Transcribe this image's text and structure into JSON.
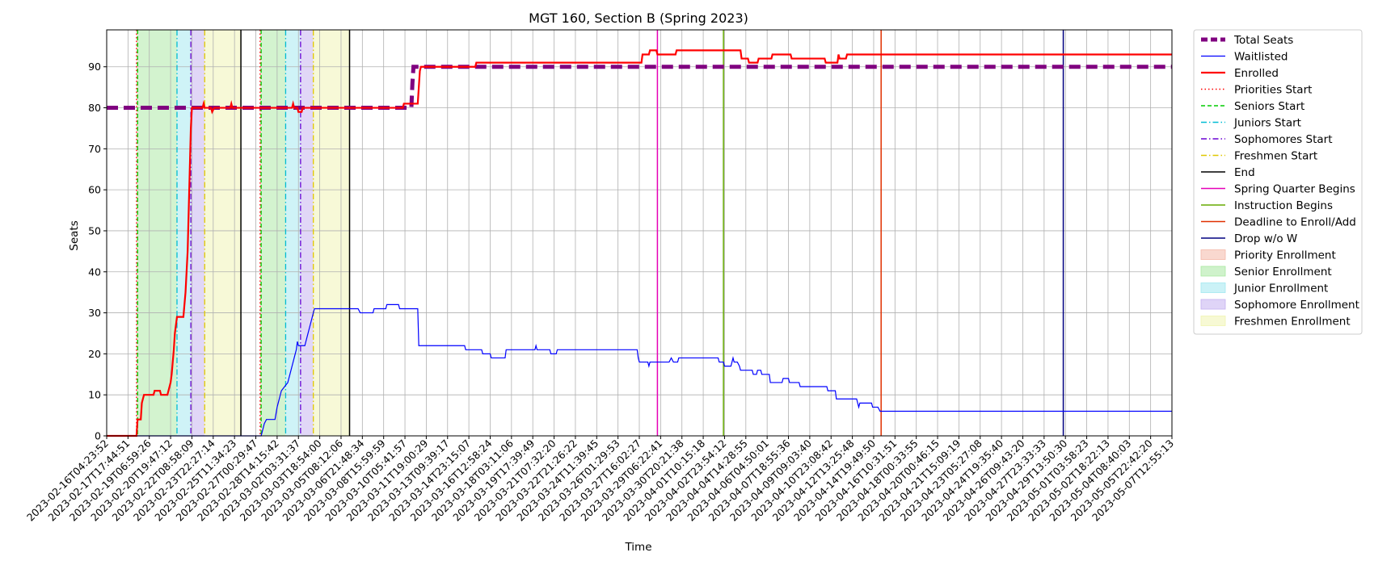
{
  "chart_data": {
    "type": "line",
    "title": "MGT 160, Section B (Spring 2023)",
    "xlabel": "Time",
    "ylabel": "Seats",
    "ylim": [
      0,
      99
    ],
    "grid": true,
    "legend_position": "outside-right",
    "x_tick_labels": [
      "2023-02-16T04:23:52",
      "2023-02-17T17:44:51",
      "2023-02-19T06:59:26",
      "2023-02-20T19:47:12",
      "2023-02-22T08:58:09",
      "2023-02-23T22:27:14",
      "2023-02-25T11:34:23",
      "2023-02-27T00:29:47",
      "2023-02-28T14:15:42",
      "2023-03-02T03:31:37",
      "2023-03-03T18:54:00",
      "2023-03-05T08:12:06",
      "2023-03-06T21:48:34",
      "2023-03-08T15:59:59",
      "2023-03-10T05:41:57",
      "2023-03-11T19:00:29",
      "2023-03-13T09:39:17",
      "2023-03-14T23:15:07",
      "2023-03-16T12:58:24",
      "2023-03-18T03:11:06",
      "2023-03-19T17:39:49",
      "2023-03-21T07:32:20",
      "2023-03-22T21:26:22",
      "2023-03-24T11:39:45",
      "2023-03-26T01:29:53",
      "2023-03-27T16:02:27",
      "2023-03-29T06:22:41",
      "2023-03-30T20:21:38",
      "2023-04-01T10:15:18",
      "2023-04-02T23:54:12",
      "2023-04-04T14:28:55",
      "2023-04-06T04:50:01",
      "2023-04-07T18:55:36",
      "2023-04-09T09:03:40",
      "2023-04-10T23:08:42",
      "2023-04-12T13:25:48",
      "2023-04-14T19:49:50",
      "2023-04-16T10:31:51",
      "2023-04-18T00:33:55",
      "2023-04-20T00:46:15",
      "2023-04-21T15:09:19",
      "2023-04-23T05:27:08",
      "2023-04-24T19:35:40",
      "2023-04-26T09:43:20",
      "2023-04-27T23:33:33",
      "2023-04-29T13:50:30",
      "2023-05-01T03:58:23",
      "2023-05-02T18:22:13",
      "2023-05-04T08:40:03",
      "2023-05-05T22:42:20",
      "2023-05-07T12:55:13"
    ],
    "y_ticks": [
      0,
      10,
      20,
      30,
      40,
      50,
      60,
      70,
      80,
      90
    ],
    "x_range_tick_index": [
      0,
      50
    ],
    "series": [
      {
        "name": "Total Seats",
        "color": "#800080",
        "style": "dashed-thick",
        "points": [
          [
            0,
            80
          ],
          [
            14.3,
            80
          ],
          [
            14.35,
            86
          ],
          [
            14.4,
            90
          ],
          [
            50,
            90
          ]
        ]
      },
      {
        "name": "Waitlisted",
        "color": "#0000ff",
        "style": "solid-thin",
        "points": [
          [
            0,
            0
          ],
          [
            7.25,
            0
          ],
          [
            7.3,
            1
          ],
          [
            7.4,
            3
          ],
          [
            7.5,
            4
          ],
          [
            7.9,
            4
          ],
          [
            8.0,
            7
          ],
          [
            8.1,
            9
          ],
          [
            8.2,
            11
          ],
          [
            8.35,
            12
          ],
          [
            8.5,
            13
          ],
          [
            8.6,
            15
          ],
          [
            8.7,
            17
          ],
          [
            8.8,
            19
          ],
          [
            8.9,
            21
          ],
          [
            8.95,
            23
          ],
          [
            9.0,
            22
          ],
          [
            9.3,
            22
          ],
          [
            9.4,
            24
          ],
          [
            9.5,
            26
          ],
          [
            9.6,
            28
          ],
          [
            9.7,
            30
          ],
          [
            9.75,
            31
          ],
          [
            11.8,
            31
          ],
          [
            11.9,
            30
          ],
          [
            12.5,
            30
          ],
          [
            12.55,
            31
          ],
          [
            13.1,
            31
          ],
          [
            13.15,
            32
          ],
          [
            13.7,
            32
          ],
          [
            13.75,
            31
          ],
          [
            14.6,
            31
          ],
          [
            14.65,
            22
          ],
          [
            16.8,
            22
          ],
          [
            16.85,
            21
          ],
          [
            17.6,
            21
          ],
          [
            17.65,
            20
          ],
          [
            18.0,
            20
          ],
          [
            18.05,
            19
          ],
          [
            18.7,
            19
          ],
          [
            18.75,
            21
          ],
          [
            20.1,
            21
          ],
          [
            20.15,
            22
          ],
          [
            20.2,
            21
          ],
          [
            20.8,
            21
          ],
          [
            20.85,
            20
          ],
          [
            21.1,
            20
          ],
          [
            21.15,
            21
          ],
          [
            24.9,
            21
          ],
          [
            24.95,
            19
          ],
          [
            25.0,
            18
          ],
          [
            25.4,
            18
          ],
          [
            25.45,
            17
          ],
          [
            25.5,
            18
          ],
          [
            26.4,
            18
          ],
          [
            26.5,
            19
          ],
          [
            26.6,
            18
          ],
          [
            26.8,
            18
          ],
          [
            26.85,
            19
          ],
          [
            28.7,
            19
          ],
          [
            28.75,
            18
          ],
          [
            28.95,
            18
          ],
          [
            29.0,
            17
          ],
          [
            29.3,
            17
          ],
          [
            29.35,
            18
          ],
          [
            29.4,
            19
          ],
          [
            29.45,
            18
          ],
          [
            29.6,
            18
          ],
          [
            29.7,
            17
          ],
          [
            29.75,
            16
          ],
          [
            30.3,
            16
          ],
          [
            30.35,
            15
          ],
          [
            30.5,
            15
          ],
          [
            30.55,
            16
          ],
          [
            30.7,
            16
          ],
          [
            30.75,
            15
          ],
          [
            31.1,
            15
          ],
          [
            31.15,
            13
          ],
          [
            31.7,
            13
          ],
          [
            31.75,
            14
          ],
          [
            32.0,
            14
          ],
          [
            32.05,
            13
          ],
          [
            32.5,
            13
          ],
          [
            32.55,
            12
          ],
          [
            33.8,
            12
          ],
          [
            33.85,
            11
          ],
          [
            34.2,
            11
          ],
          [
            34.25,
            9
          ],
          [
            35.2,
            9
          ],
          [
            35.25,
            8
          ],
          [
            35.3,
            7
          ],
          [
            35.35,
            8
          ],
          [
            35.9,
            8
          ],
          [
            35.95,
            7
          ],
          [
            36.2,
            7
          ],
          [
            36.3,
            6
          ],
          [
            50,
            6
          ]
        ]
      },
      {
        "name": "Enrolled",
        "color": "#ff0000",
        "style": "solid-thick",
        "points": [
          [
            0,
            0
          ],
          [
            1.4,
            0
          ],
          [
            1.45,
            4
          ],
          [
            1.6,
            4
          ],
          [
            1.65,
            8
          ],
          [
            1.75,
            10
          ],
          [
            2.2,
            10
          ],
          [
            2.25,
            11
          ],
          [
            2.5,
            11
          ],
          [
            2.55,
            10
          ],
          [
            2.85,
            10
          ],
          [
            2.9,
            11
          ],
          [
            3.0,
            13
          ],
          [
            3.05,
            15
          ],
          [
            3.15,
            21
          ],
          [
            3.2,
            25
          ],
          [
            3.25,
            27
          ],
          [
            3.3,
            29
          ],
          [
            3.6,
            29
          ],
          [
            3.7,
            35
          ],
          [
            3.8,
            45
          ],
          [
            3.85,
            55
          ],
          [
            3.9,
            65
          ],
          [
            3.95,
            75
          ],
          [
            4.0,
            80
          ],
          [
            4.5,
            80
          ],
          [
            4.55,
            81
          ],
          [
            4.6,
            80
          ],
          [
            4.9,
            80
          ],
          [
            4.95,
            79
          ],
          [
            5.05,
            80
          ],
          [
            5.8,
            80
          ],
          [
            5.85,
            81
          ],
          [
            5.9,
            80
          ],
          [
            8.7,
            80
          ],
          [
            8.75,
            81
          ],
          [
            8.8,
            80
          ],
          [
            8.95,
            80
          ],
          [
            9.0,
            79
          ],
          [
            9.15,
            79
          ],
          [
            9.2,
            80
          ],
          [
            13.9,
            80
          ],
          [
            13.95,
            81
          ],
          [
            14.6,
            81
          ],
          [
            14.7,
            89
          ],
          [
            14.75,
            90
          ],
          [
            17.3,
            90
          ],
          [
            17.35,
            91
          ],
          [
            25.1,
            91
          ],
          [
            25.15,
            93
          ],
          [
            25.45,
            93
          ],
          [
            25.5,
            94
          ],
          [
            25.8,
            94
          ],
          [
            25.85,
            93
          ],
          [
            26.7,
            93
          ],
          [
            26.75,
            94
          ],
          [
            29.75,
            94
          ],
          [
            29.8,
            92
          ],
          [
            30.1,
            92
          ],
          [
            30.15,
            91
          ],
          [
            30.55,
            91
          ],
          [
            30.6,
            92
          ],
          [
            31.2,
            92
          ],
          [
            31.25,
            93
          ],
          [
            32.1,
            93
          ],
          [
            32.15,
            92
          ],
          [
            33.7,
            92
          ],
          [
            33.75,
            91
          ],
          [
            34.3,
            91
          ],
          [
            34.35,
            93
          ],
          [
            34.4,
            92
          ],
          [
            34.7,
            92
          ],
          [
            34.75,
            93
          ],
          [
            50,
            93
          ]
        ]
      }
    ],
    "phase_lines": [
      {
        "name": "Priorities Start",
        "color": "#ff0000",
        "style": "dotted",
        "x": [
          1.4,
          7.2
        ]
      },
      {
        "name": "Seniors Start",
        "color": "#00cc00",
        "style": "dashed",
        "x": [
          1.45,
          7.25
        ]
      },
      {
        "name": "Juniors Start",
        "color": "#00bcd4",
        "style": "dashdot",
        "x": [
          3.3,
          8.4
        ]
      },
      {
        "name": "Sophomores Start",
        "color": "#6a00d4",
        "style": "dashdot",
        "x": [
          3.95,
          9.1
        ]
      },
      {
        "name": "Freshmen Start",
        "color": "#e0c800",
        "style": "dashdot",
        "x": [
          4.6,
          9.7
        ]
      },
      {
        "name": "End",
        "color": "#000000",
        "style": "solid",
        "x": [
          6.3,
          11.4
        ]
      }
    ],
    "events": [
      {
        "name": "Spring Quarter Begins",
        "color": "#e600b8",
        "x": 25.85
      },
      {
        "name": "Instruction Begins",
        "color": "#66aa00",
        "x": 28.95
      },
      {
        "name": "Deadline to Enroll/Add",
        "color": "#e03000",
        "x": 36.35
      },
      {
        "name": "Drop w/o W",
        "color": "#000080",
        "x": 44.9
      }
    ],
    "enrollment_periods": [
      {
        "name": "Priority Enrollment",
        "color": "#f4b8a8",
        "ranges": [
          [
            1.4,
            1.45
          ],
          [
            7.2,
            7.25
          ]
        ]
      },
      {
        "name": "Senior Enrollment",
        "color": "#a8e8a0",
        "ranges": [
          [
            1.45,
            3.3
          ],
          [
            7.25,
            8.4
          ]
        ]
      },
      {
        "name": "Junior Enrollment",
        "color": "#a0e8f0",
        "ranges": [
          [
            3.3,
            3.95
          ],
          [
            8.4,
            9.1
          ]
        ]
      },
      {
        "name": "Sophomore Enrollment",
        "color": "#c4b0f0",
        "ranges": [
          [
            3.95,
            4.6
          ],
          [
            9.1,
            9.7
          ]
        ]
      },
      {
        "name": "Freshmen Enrollment",
        "color": "#f0f4b0",
        "ranges": [
          [
            4.6,
            6.3
          ],
          [
            9.7,
            11.4
          ]
        ]
      }
    ]
  }
}
